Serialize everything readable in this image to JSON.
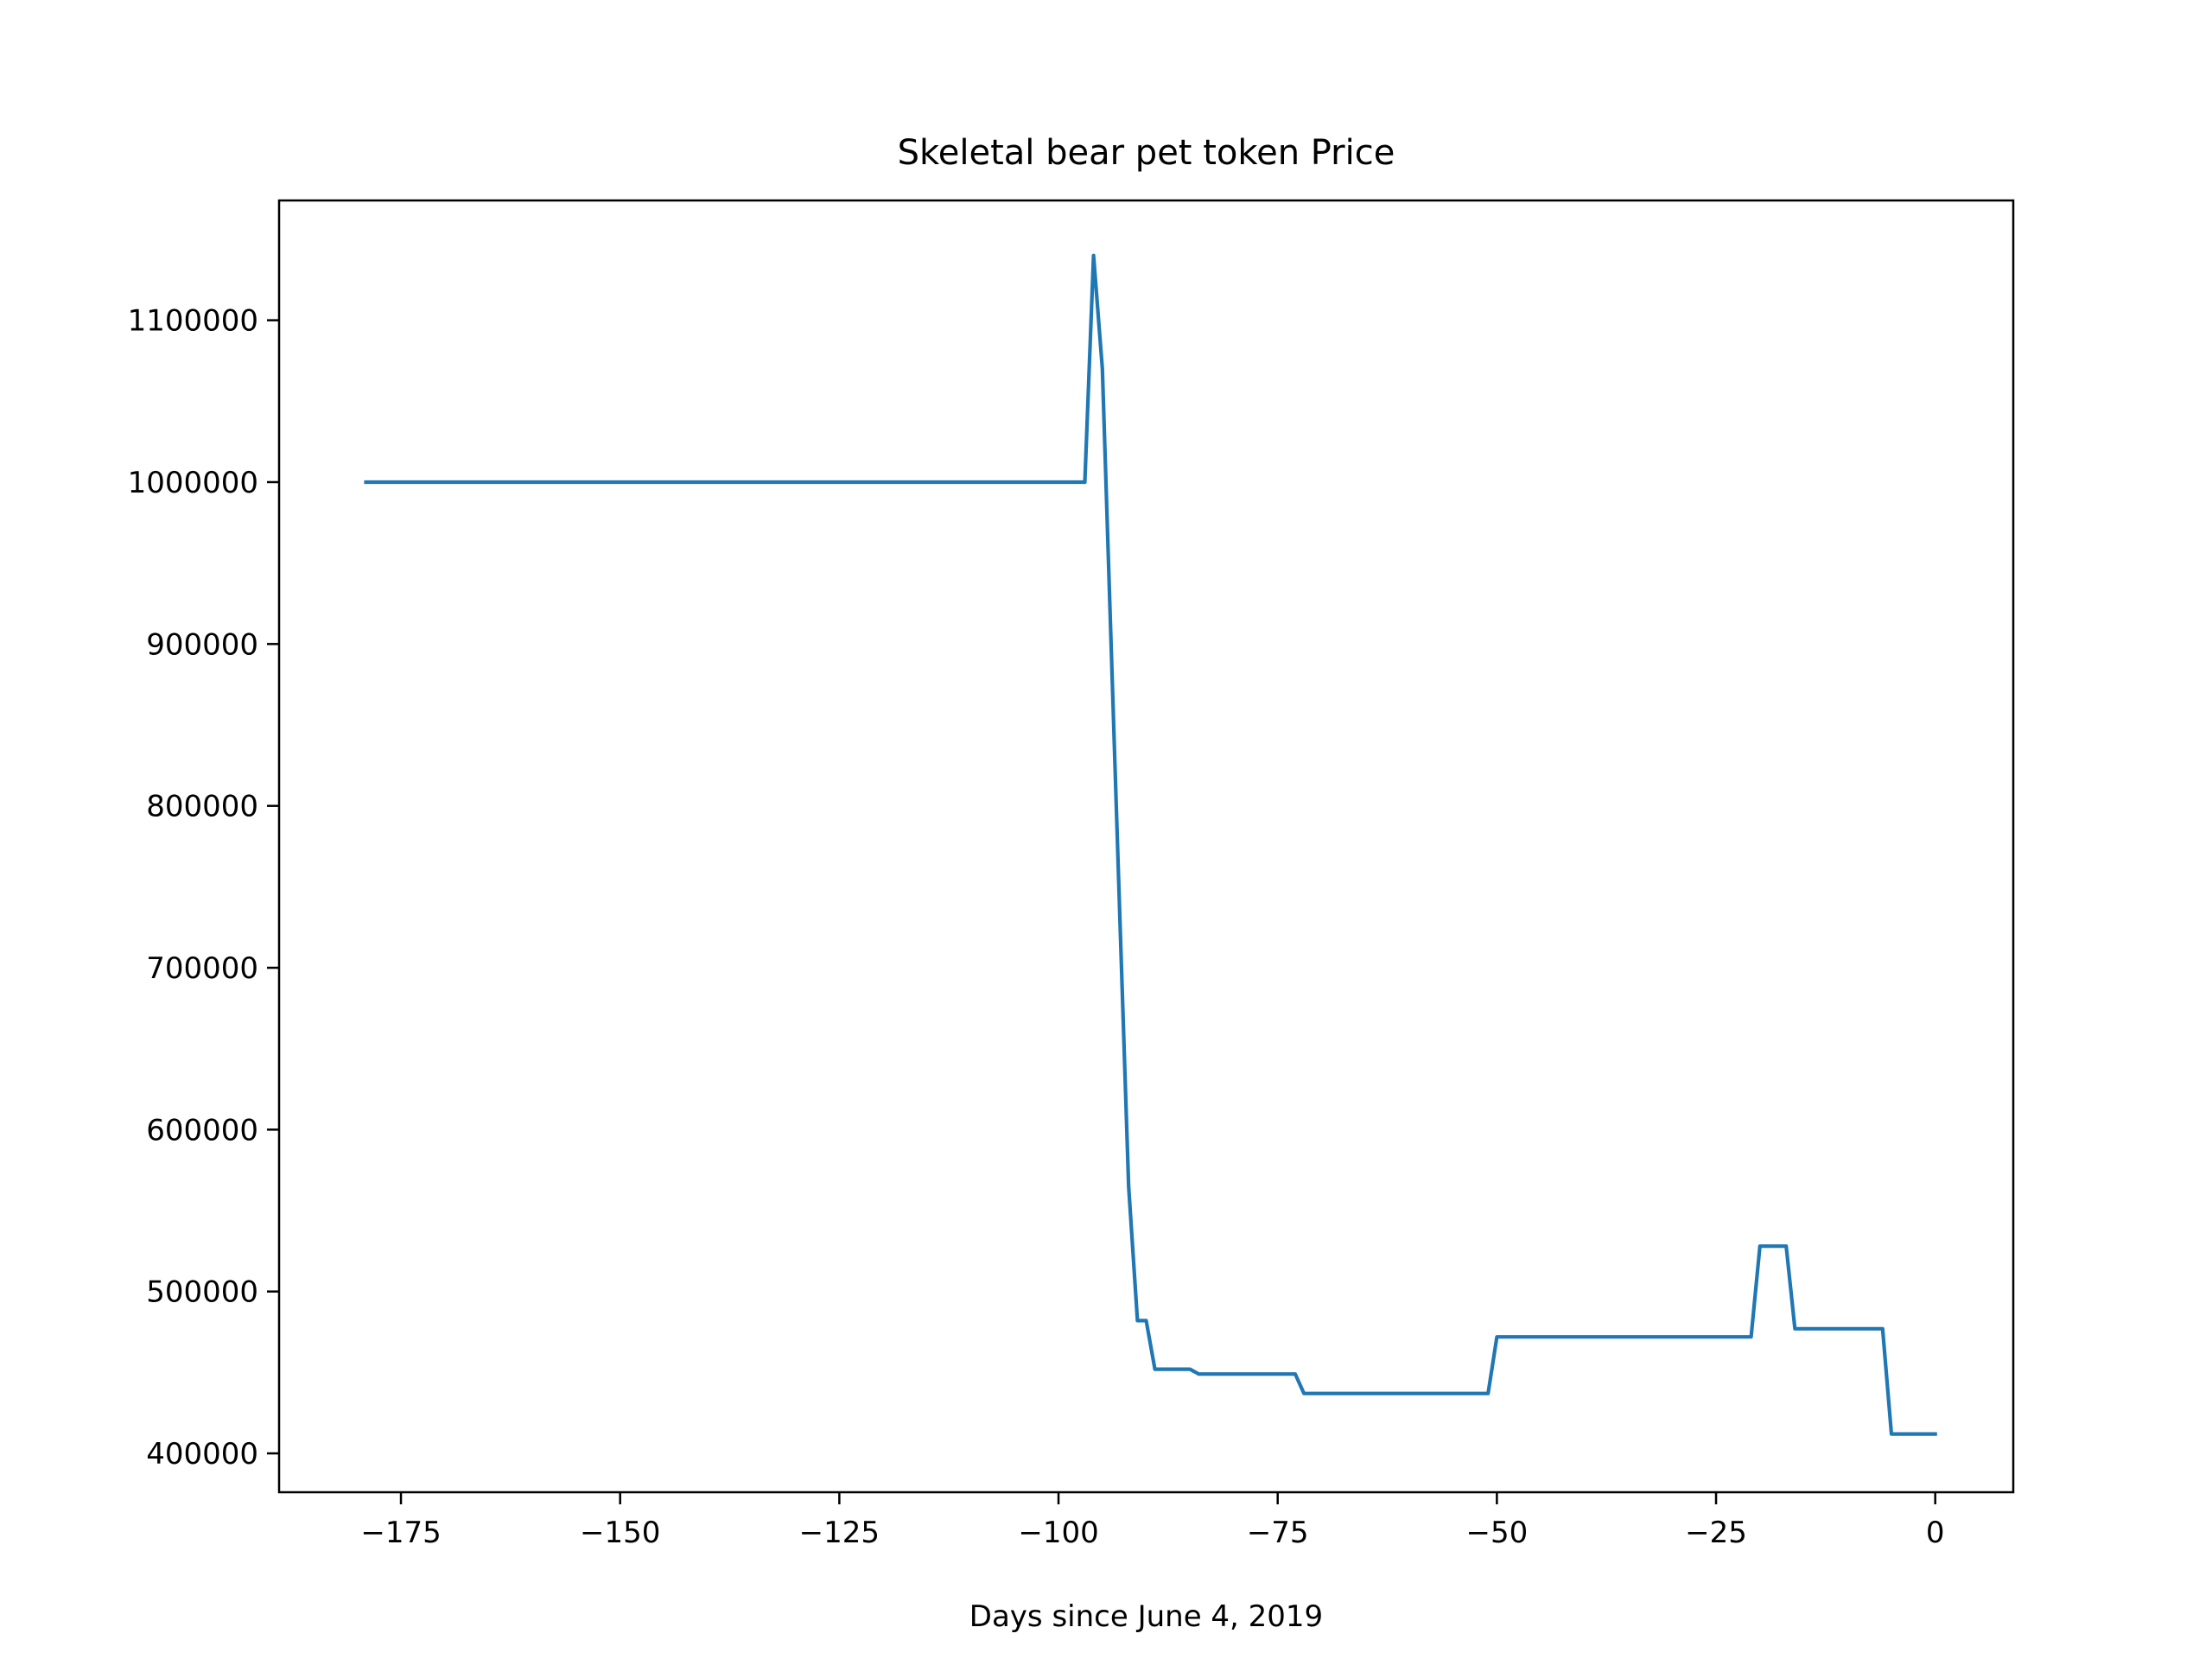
{
  "chart_data": {
    "type": "line",
    "title": "Skeletal bear pet token Price",
    "xlabel": "Days since June 4, 2019",
    "ylabel": "",
    "xlim": [
      -188.9,
      8.9
    ],
    "ylim": [
      376000,
      1174000
    ],
    "xticks": [
      -175,
      -150,
      -125,
      -100,
      -75,
      -50,
      -25,
      0
    ],
    "xtick_labels": [
      "−175",
      "−150",
      "−125",
      "−100",
      "−75",
      "−50",
      "−25",
      "0"
    ],
    "yticks": [
      400000,
      500000,
      600000,
      700000,
      800000,
      900000,
      1000000,
      1100000
    ],
    "ytick_labels": [
      "400000",
      "500000",
      "600000",
      "700000",
      "800000",
      "900000",
      "1000000",
      "1100000"
    ],
    "grid": false,
    "legend": "none",
    "series": [
      {
        "color": "#1f77b4",
        "x": [
          -179,
          -97,
          -96,
          -95,
          -94,
          -93,
          -92,
          -91,
          -90,
          -89,
          -85,
          -84,
          -73,
          -72,
          -51,
          -50,
          -21,
          -20,
          -17,
          -16,
          -6,
          -5,
          0
        ],
        "y": [
          1000000,
          1000000,
          1140000,
          1070000,
          900000,
          730000,
          565000,
          482000,
          482000,
          452000,
          452000,
          449000,
          449000,
          437000,
          437000,
          472000,
          472000,
          528000,
          528000,
          477000,
          477000,
          412000,
          412000
        ]
      }
    ]
  }
}
